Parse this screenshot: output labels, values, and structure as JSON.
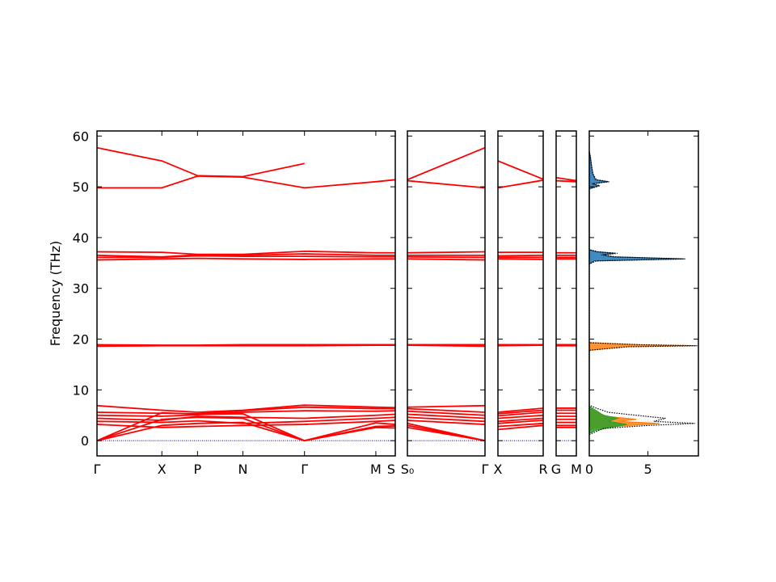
{
  "chart_data": {
    "type": "line",
    "ylabel": "Frequency (THz)",
    "ylim": [
      -3,
      61
    ],
    "yticks": [
      0,
      10,
      20,
      30,
      40,
      50,
      60
    ],
    "dos_xlim": [
      0,
      9.3
    ],
    "dos_xticks": [
      "0",
      "5"
    ],
    "dos_xtick_values": [
      0,
      5
    ],
    "band_color": "#ff0000",
    "zero_line_color": "#0000aa",
    "panels": [
      {
        "labels": [
          "Γ",
          "X",
          "P",
          "N",
          "Γ",
          "M",
          "S"
        ],
        "bands": [
          {
            "x": [
              0,
              1,
              1.55,
              2.25,
              3.2,
              4.3,
              4.6
            ],
            "y": [
              0,
              5.5,
              5.2,
              5.3,
              0,
              3.5,
              3.2
            ]
          },
          {
            "x": [
              0,
              1,
              1.55,
              2.25,
              3.2,
              4.3,
              4.6
            ],
            "y": [
              0,
              4.2,
              4.6,
              4.4,
              0,
              2.8,
              2.9
            ]
          },
          {
            "x": [
              0,
              1,
              1.55,
              2.25,
              3.2,
              4.3,
              4.6
            ],
            "y": [
              0,
              3.0,
              3.4,
              3.6,
              0,
              2.6,
              2.5
            ]
          },
          {
            "x": [
              0,
              1,
              1.55,
              2.25,
              3.2,
              4.3,
              4.6
            ],
            "y": [
              3.2,
              2.6,
              2.8,
              3.0,
              3.2,
              3.8,
              4.0
            ]
          },
          {
            "x": [
              0,
              1,
              1.55,
              2.25,
              3.2,
              4.3,
              4.6
            ],
            "y": [
              3.8,
              3.6,
              3.9,
              3.4,
              3.8,
              4.4,
              4.6
            ]
          },
          {
            "x": [
              0,
              1,
              1.55,
              2.25,
              3.2,
              4.3,
              4.6
            ],
            "y": [
              4.4,
              4.0,
              4.8,
              4.6,
              4.4,
              5.0,
              5.2
            ]
          },
          {
            "x": [
              0,
              1,
              1.55,
              2.25,
              3.2,
              4.3,
              4.6
            ],
            "y": [
              5.0,
              4.8,
              5.1,
              5.6,
              5.9,
              5.8,
              5.9
            ]
          },
          {
            "x": [
              0,
              1,
              1.55,
              2.25,
              3.2,
              4.3,
              4.6
            ],
            "y": [
              5.6,
              5.4,
              5.3,
              5.9,
              6.6,
              6.3,
              6.3
            ]
          },
          {
            "x": [
              0,
              1,
              1.55,
              2.25,
              3.2,
              4.3,
              4.6
            ],
            "y": [
              6.9,
              6.0,
              5.6,
              6.0,
              7.0,
              6.6,
              6.5
            ]
          },
          {
            "x": [
              0,
              1,
              1.55,
              2.25,
              3.2,
              4.3,
              4.6
            ],
            "y": [
              18.6,
              18.7,
              18.7,
              18.7,
              18.7,
              18.8,
              18.8
            ]
          },
          {
            "x": [
              0,
              1,
              1.55,
              2.25,
              3.2,
              4.3,
              4.6
            ],
            "y": [
              18.9,
              18.8,
              18.8,
              18.9,
              18.9,
              18.9,
              18.9
            ]
          },
          {
            "x": [
              0,
              1,
              1.55,
              2.25,
              3.2,
              4.3,
              4.6
            ],
            "y": [
              35.6,
              35.8,
              35.9,
              35.8,
              35.7,
              35.8,
              35.8
            ]
          },
          {
            "x": [
              0,
              1,
              1.55,
              2.25,
              3.2,
              4.3,
              4.6
            ],
            "y": [
              36.1,
              36.1,
              36.4,
              36.3,
              36.3,
              36.2,
              36.2
            ]
          },
          {
            "x": [
              0,
              1,
              1.55,
              2.25,
              3.2,
              4.3,
              4.6
            ],
            "y": [
              36.5,
              36.2,
              36.6,
              36.5,
              36.8,
              36.5,
              36.5
            ]
          },
          {
            "x": [
              0,
              1,
              1.55,
              2.25,
              3.2,
              4.3,
              4.6
            ],
            "y": [
              37.2,
              37.1,
              36.7,
              36.7,
              37.3,
              37.0,
              37.0
            ]
          },
          {
            "x": [
              0,
              1,
              1.55,
              2.25,
              3.2,
              4.3,
              4.6
            ],
            "y": [
              49.8,
              49.8,
              52.1,
              51.9,
              49.8,
              51.0,
              51.4
            ]
          },
          {
            "x": [
              0,
              1,
              1.55,
              2.25,
              3.2
            ],
            "y": [
              57.7,
              55.1,
              52.2,
              52.0,
              54.6
            ]
          }
        ]
      },
      {
        "labels": [
          "S₀",
          "Γ"
        ],
        "bands": [
          {
            "x": [
              0,
              1
            ],
            "y": [
              2.6,
              0
            ]
          },
          {
            "x": [
              0,
              1
            ],
            "y": [
              3.0,
              0
            ]
          },
          {
            "x": [
              0,
              1
            ],
            "y": [
              3.4,
              0
            ]
          },
          {
            "x": [
              0,
              1
            ],
            "y": [
              4.0,
              3.2
            ]
          },
          {
            "x": [
              0,
              1
            ],
            "y": [
              4.6,
              3.8
            ]
          },
          {
            "x": [
              0,
              1
            ],
            "y": [
              5.2,
              4.4
            ]
          },
          {
            "x": [
              0,
              1
            ],
            "y": [
              5.8,
              5.0
            ]
          },
          {
            "x": [
              0,
              1
            ],
            "y": [
              6.3,
              5.6
            ]
          },
          {
            "x": [
              0,
              1
            ],
            "y": [
              6.6,
              6.9
            ]
          },
          {
            "x": [
              0,
              1
            ],
            "y": [
              18.8,
              18.6
            ]
          },
          {
            "x": [
              0,
              1
            ],
            "y": [
              18.9,
              18.9
            ]
          },
          {
            "x": [
              0,
              1
            ],
            "y": [
              35.8,
              35.6
            ]
          },
          {
            "x": [
              0,
              1
            ],
            "y": [
              36.2,
              36.1
            ]
          },
          {
            "x": [
              0,
              1
            ],
            "y": [
              36.5,
              36.5
            ]
          },
          {
            "x": [
              0,
              1
            ],
            "y": [
              37.0,
              37.2
            ]
          },
          {
            "x": [
              0,
              1
            ],
            "y": [
              51.2,
              49.8
            ]
          },
          {
            "x": [
              0,
              1
            ],
            "y": [
              51.4,
              57.7
            ]
          }
        ]
      },
      {
        "labels": [
          "X",
          "R"
        ],
        "bands": [
          {
            "x": [
              0,
              1
            ],
            "y": [
              2.2,
              3.0
            ]
          },
          {
            "x": [
              0,
              1
            ],
            "y": [
              2.8,
              3.4
            ]
          },
          {
            "x": [
              0,
              1
            ],
            "y": [
              3.4,
              4.0
            ]
          },
          {
            "x": [
              0,
              1
            ],
            "y": [
              3.8,
              4.4
            ]
          },
          {
            "x": [
              0,
              1
            ],
            "y": [
              4.4,
              5.0
            ]
          },
          {
            "x": [
              0,
              1
            ],
            "y": [
              4.9,
              5.6
            ]
          },
          {
            "x": [
              0,
              1
            ],
            "y": [
              5.3,
              6.0
            ]
          },
          {
            "x": [
              0,
              1
            ],
            "y": [
              5.6,
              6.4
            ]
          },
          {
            "x": [
              0,
              1
            ],
            "y": [
              18.7,
              18.8
            ]
          },
          {
            "x": [
              0,
              1
            ],
            "y": [
              18.9,
              18.9
            ]
          },
          {
            "x": [
              0,
              1
            ],
            "y": [
              35.8,
              35.7
            ]
          },
          {
            "x": [
              0,
              1
            ],
            "y": [
              36.1,
              36.1
            ]
          },
          {
            "x": [
              0,
              1
            ],
            "y": [
              36.4,
              36.5
            ]
          },
          {
            "x": [
              0,
              1
            ],
            "y": [
              37.1,
              37.1
            ]
          },
          {
            "x": [
              0,
              1
            ],
            "y": [
              49.8,
              51.3
            ]
          },
          {
            "x": [
              0,
              1
            ],
            "y": [
              55.1,
              51.5
            ]
          }
        ]
      },
      {
        "labels": [
          "G",
          "M"
        ],
        "bands": [
          {
            "x": [
              0,
              1
            ],
            "y": [
              2.6,
              2.6
            ]
          },
          {
            "x": [
              0,
              1
            ],
            "y": [
              3.0,
              3.0
            ]
          },
          {
            "x": [
              0,
              1
            ],
            "y": [
              3.6,
              3.6
            ]
          },
          {
            "x": [
              0,
              1
            ],
            "y": [
              4.2,
              4.2
            ]
          },
          {
            "x": [
              0,
              1
            ],
            "y": [
              4.8,
              4.8
            ]
          },
          {
            "x": [
              0,
              1
            ],
            "y": [
              5.4,
              5.4
            ]
          },
          {
            "x": [
              0,
              1
            ],
            "y": [
              6.0,
              6.0
            ]
          },
          {
            "x": [
              0,
              1
            ],
            "y": [
              6.4,
              6.4
            ]
          },
          {
            "x": [
              0,
              1
            ],
            "y": [
              18.7,
              18.7
            ]
          },
          {
            "x": [
              0,
              1
            ],
            "y": [
              18.9,
              18.9
            ]
          },
          {
            "x": [
              0,
              1
            ],
            "y": [
              35.8,
              35.8
            ]
          },
          {
            "x": [
              0,
              1
            ],
            "y": [
              36.1,
              36.1
            ]
          },
          {
            "x": [
              0,
              1
            ],
            "y": [
              36.5,
              36.5
            ]
          },
          {
            "x": [
              0,
              1
            ],
            "y": [
              37.0,
              37.0
            ]
          },
          {
            "x": [
              0,
              1
            ],
            "y": [
              51.2,
              51.0
            ]
          },
          {
            "x": [
              0,
              1
            ],
            "y": [
              51.8,
              51.2
            ]
          }
        ]
      }
    ],
    "dos": {
      "series": [
        {
          "color": "#1f4e79",
          "fill": "#1f77b4",
          "points": [
            [
              0,
              34.8
            ],
            [
              0.4,
              35.4
            ],
            [
              8.2,
              35.8
            ],
            [
              2.0,
              36.2
            ],
            [
              1.0,
              36.6
            ],
            [
              2.2,
              36.9
            ],
            [
              0.6,
              37.2
            ],
            [
              0,
              37.6
            ],
            [
              0,
              49.6
            ],
            [
              0.8,
              50.2
            ],
            [
              0.2,
              50.6
            ],
            [
              1.6,
              51.0
            ],
            [
              0.5,
              51.4
            ],
            [
              0.3,
              52.6
            ],
            [
              0.2,
              54.0
            ],
            [
              0.1,
              55.8
            ],
            [
              0,
              57.0
            ]
          ]
        },
        {
          "color": "#ff7f0e",
          "fill": "#ff7f0e",
          "points": [
            [
              0,
              17.8
            ],
            [
              3.0,
              18.5
            ],
            [
              8.8,
              18.7
            ],
            [
              4.0,
              18.9
            ],
            [
              0,
              19.3
            ],
            [
              0,
              2.2
            ],
            [
              1.0,
              2.6
            ],
            [
              3.5,
              3.0
            ],
            [
              6.0,
              3.4
            ],
            [
              2.5,
              3.8
            ],
            [
              4.0,
              4.2
            ],
            [
              1.5,
              4.8
            ],
            [
              0.6,
              5.6
            ],
            [
              0,
              6.4
            ]
          ]
        },
        {
          "color": "#2ca02c",
          "fill": "#2ca02c",
          "points": [
            [
              0,
              1.4
            ],
            [
              0.5,
              2.0
            ],
            [
              1.8,
              2.6
            ],
            [
              3.2,
              3.2
            ],
            [
              1.6,
              3.8
            ],
            [
              2.4,
              4.4
            ],
            [
              1.2,
              5.0
            ],
            [
              0.8,
              5.6
            ],
            [
              0.4,
              6.2
            ],
            [
              0,
              6.8
            ]
          ]
        }
      ],
      "total": [
        [
          0,
          1.2
        ],
        [
          1.2,
          2.4
        ],
        [
          5.0,
          3.0
        ],
        [
          9.0,
          3.4
        ],
        [
          5.5,
          3.8
        ],
        [
          6.5,
          4.4
        ],
        [
          4.0,
          5.0
        ],
        [
          1.6,
          5.6
        ],
        [
          0.6,
          6.4
        ],
        [
          0,
          7.0
        ],
        [
          0,
          17.8
        ],
        [
          3.4,
          18.5
        ],
        [
          9.2,
          18.7
        ],
        [
          4.4,
          18.9
        ],
        [
          0,
          19.3
        ],
        [
          0,
          34.8
        ],
        [
          0.6,
          35.4
        ],
        [
          8.0,
          35.8
        ],
        [
          2.2,
          36.2
        ],
        [
          1.2,
          36.6
        ],
        [
          2.4,
          36.9
        ],
        [
          0.8,
          37.2
        ],
        [
          0,
          37.6
        ],
        [
          0,
          49.6
        ],
        [
          0.9,
          50.2
        ],
        [
          0.3,
          50.6
        ],
        [
          1.7,
          51.0
        ],
        [
          0.6,
          51.4
        ],
        [
          0.3,
          52.6
        ],
        [
          0.2,
          54.0
        ],
        [
          0.1,
          55.8
        ],
        [
          0,
          57.0
        ]
      ]
    }
  }
}
